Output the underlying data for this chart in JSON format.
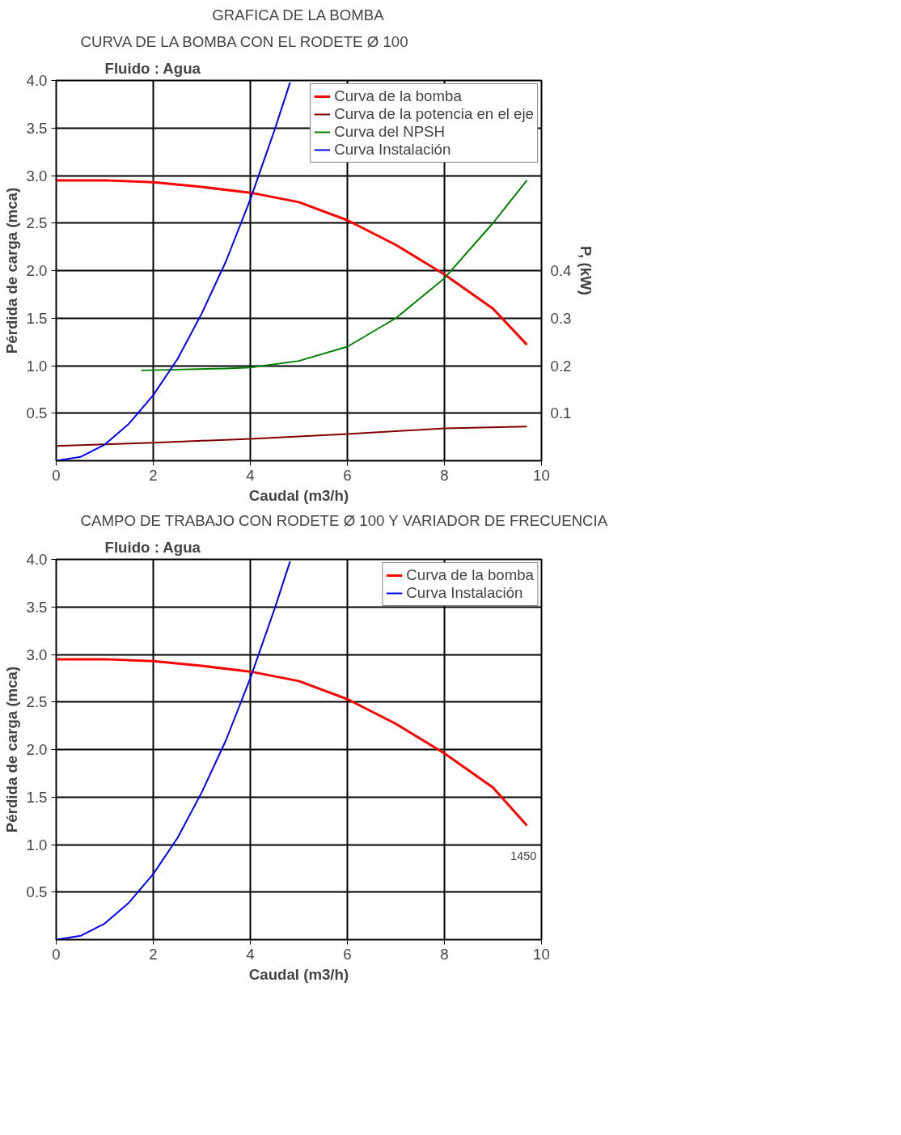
{
  "chart_data": [
    {
      "type": "line",
      "title": "CURVA DE LA BOMBA CON EL RODETE Ø  100",
      "subtitle": "Fluido : Agua",
      "annotations": [
        "GRAFICA DE LA BOMBA"
      ],
      "xlabel": "Caudal (m3/h)",
      "ylabel": "Pérdida de carga (mca)",
      "y2label": "P, (kW)",
      "xlim": [
        0,
        10
      ],
      "xticks": [
        0,
        2,
        4,
        6,
        8,
        10
      ],
      "ylim": [
        0,
        4
      ],
      "yticks": [
        0.5,
        {
          "value": 1,
          "label": "1.0"
        },
        1.5,
        {
          "value": 2,
          "label": "2.0"
        },
        2.5,
        {
          "value": 3,
          "label": "3.0"
        },
        3.5,
        {
          "value": 4,
          "label": "4.0"
        }
      ],
      "y2lim": [
        0,
        0.8
      ],
      "y2ticks": [
        0.1,
        0.2,
        0.3,
        0.4
      ],
      "grid": true,
      "legend": "top right",
      "series": [
        {
          "name": "Curva de la bomba",
          "color": "#ff0000",
          "x": [
            0,
            1,
            2,
            3,
            4,
            5,
            6,
            7,
            8,
            9,
            9.7
          ],
          "values": [
            2.95,
            2.95,
            2.93,
            2.88,
            2.82,
            2.72,
            2.53,
            2.27,
            1.96,
            1.6,
            1.22
          ]
        },
        {
          "name": "Curva de la potencia en el eje",
          "color": "#800000",
          "axis": "y2",
          "x": [
            0,
            2,
            4,
            6,
            8,
            9.7
          ],
          "values": [
            0.031,
            0.038,
            0.046,
            0.056,
            0.068,
            0.072
          ]
        },
        {
          "name": "Curva del NPSH",
          "color": "#008000",
          "x": [
            1.75,
            3.5,
            4,
            5,
            6,
            7,
            8,
            9,
            9.7
          ],
          "values": [
            0.95,
            0.97,
            0.98,
            1.05,
            1.2,
            1.5,
            1.92,
            2.5,
            2.95
          ]
        },
        {
          "name": "Curva Instalación",
          "color": "#0000ff",
          "x": [
            0,
            0.5,
            1,
            1.5,
            2,
            2.5,
            3,
            3.5,
            4,
            4.5,
            4.82
          ],
          "values": [
            0,
            0.04,
            0.17,
            0.39,
            0.69,
            1.07,
            1.55,
            2.1,
            2.75,
            3.48,
            3.98
          ]
        }
      ]
    },
    {
      "type": "line",
      "title": "CAMPO DE TRABAJO CON RODETE Ø  100 Y VARIADOR DE FRECUENCIA",
      "subtitle": "Fluido : Agua",
      "xlabel": "Caudal (m3/h)",
      "ylabel": "Pérdida de carga (mca)",
      "annotations": [
        {
          "text": "1450",
          "x": 9.7,
          "y": 1.2
        }
      ],
      "xlim": [
        0,
        10
      ],
      "xticks": [
        0,
        2,
        4,
        6,
        8,
        10
      ],
      "ylim": [
        0,
        4
      ],
      "yticks": [
        0.5,
        {
          "value": 1,
          "label": "1.0"
        },
        1.5,
        {
          "value": 2,
          "label": "2.0"
        },
        2.5,
        {
          "value": 3,
          "label": "3.0"
        },
        3.5,
        {
          "value": 4,
          "label": "4.0"
        }
      ],
      "grid": true,
      "legend": "top right",
      "series": [
        {
          "name": "Curva de la bomba",
          "color": "#ff0000",
          "x": [
            0,
            1,
            2,
            3,
            4,
            5,
            6,
            7,
            8,
            9,
            9.7
          ],
          "values": [
            2.95,
            2.95,
            2.93,
            2.88,
            2.82,
            2.72,
            2.53,
            2.27,
            1.96,
            1.6,
            1.2
          ]
        },
        {
          "name": "Curva Instalación",
          "color": "#0000ff",
          "x": [
            0,
            0.5,
            1,
            1.5,
            2,
            2.5,
            3,
            3.5,
            4,
            4.5,
            4.82
          ],
          "values": [
            0,
            0.04,
            0.17,
            0.39,
            0.69,
            1.07,
            1.55,
            2.1,
            2.75,
            3.48,
            3.98
          ]
        }
      ]
    }
  ]
}
